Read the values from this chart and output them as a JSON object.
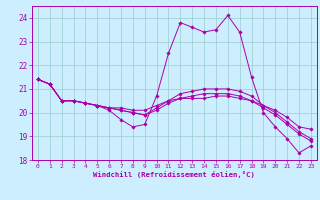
{
  "title": "",
  "xlabel": "Windchill (Refroidissement éolien,°C)",
  "ylabel": "",
  "bg_color": "#cceeff",
  "line_color": "#aa00aa",
  "grid_color": "#99cccc",
  "xlim": [
    -0.5,
    23.5
  ],
  "ylim": [
    18,
    24.5
  ],
  "yticks": [
    18,
    19,
    20,
    21,
    22,
    23,
    24
  ],
  "xticks": [
    0,
    1,
    2,
    3,
    4,
    5,
    6,
    7,
    8,
    9,
    10,
    11,
    12,
    13,
    14,
    15,
    16,
    17,
    18,
    19,
    20,
    21,
    22,
    23
  ],
  "series": [
    {
      "x": [
        0,
        1,
        2,
        3,
        4,
        5,
        6,
        7,
        8,
        9,
        10,
        11,
        12,
        13,
        14,
        15,
        16,
        17,
        18,
        19,
        20,
        21,
        22,
        23
      ],
      "y": [
        21.4,
        21.2,
        20.5,
        20.5,
        20.4,
        20.3,
        20.1,
        19.7,
        19.4,
        19.5,
        20.7,
        22.5,
        23.8,
        23.6,
        23.4,
        23.5,
        24.1,
        23.4,
        21.5,
        20.0,
        19.4,
        18.9,
        18.3,
        18.6
      ]
    },
    {
      "x": [
        0,
        1,
        2,
        3,
        4,
        5,
        6,
        7,
        8,
        9,
        10,
        11,
        12,
        13,
        14,
        15,
        16,
        17,
        18,
        19,
        20,
        21,
        22,
        23
      ],
      "y": [
        21.4,
        21.2,
        20.5,
        20.5,
        20.4,
        20.3,
        20.2,
        20.2,
        20.1,
        20.1,
        20.3,
        20.5,
        20.6,
        20.6,
        20.6,
        20.7,
        20.7,
        20.6,
        20.5,
        20.3,
        20.1,
        19.8,
        19.4,
        19.3
      ]
    },
    {
      "x": [
        0,
        1,
        2,
        3,
        4,
        5,
        6,
        7,
        8,
        9,
        10,
        11,
        12,
        13,
        14,
        15,
        16,
        17,
        18,
        19,
        20,
        21,
        22,
        23
      ],
      "y": [
        21.4,
        21.2,
        20.5,
        20.5,
        20.4,
        20.3,
        20.2,
        20.1,
        20.0,
        19.9,
        20.1,
        20.4,
        20.6,
        20.7,
        20.8,
        20.8,
        20.8,
        20.7,
        20.5,
        20.2,
        19.9,
        19.5,
        19.1,
        18.8
      ]
    },
    {
      "x": [
        0,
        1,
        2,
        3,
        4,
        5,
        6,
        7,
        8,
        9,
        10,
        11,
        12,
        13,
        14,
        15,
        16,
        17,
        18,
        19,
        20,
        21,
        22,
        23
      ],
      "y": [
        21.4,
        21.2,
        20.5,
        20.5,
        20.4,
        20.3,
        20.2,
        20.1,
        20.0,
        19.9,
        20.2,
        20.5,
        20.8,
        20.9,
        21.0,
        21.0,
        21.0,
        20.9,
        20.7,
        20.3,
        20.0,
        19.6,
        19.2,
        18.9
      ]
    }
  ]
}
